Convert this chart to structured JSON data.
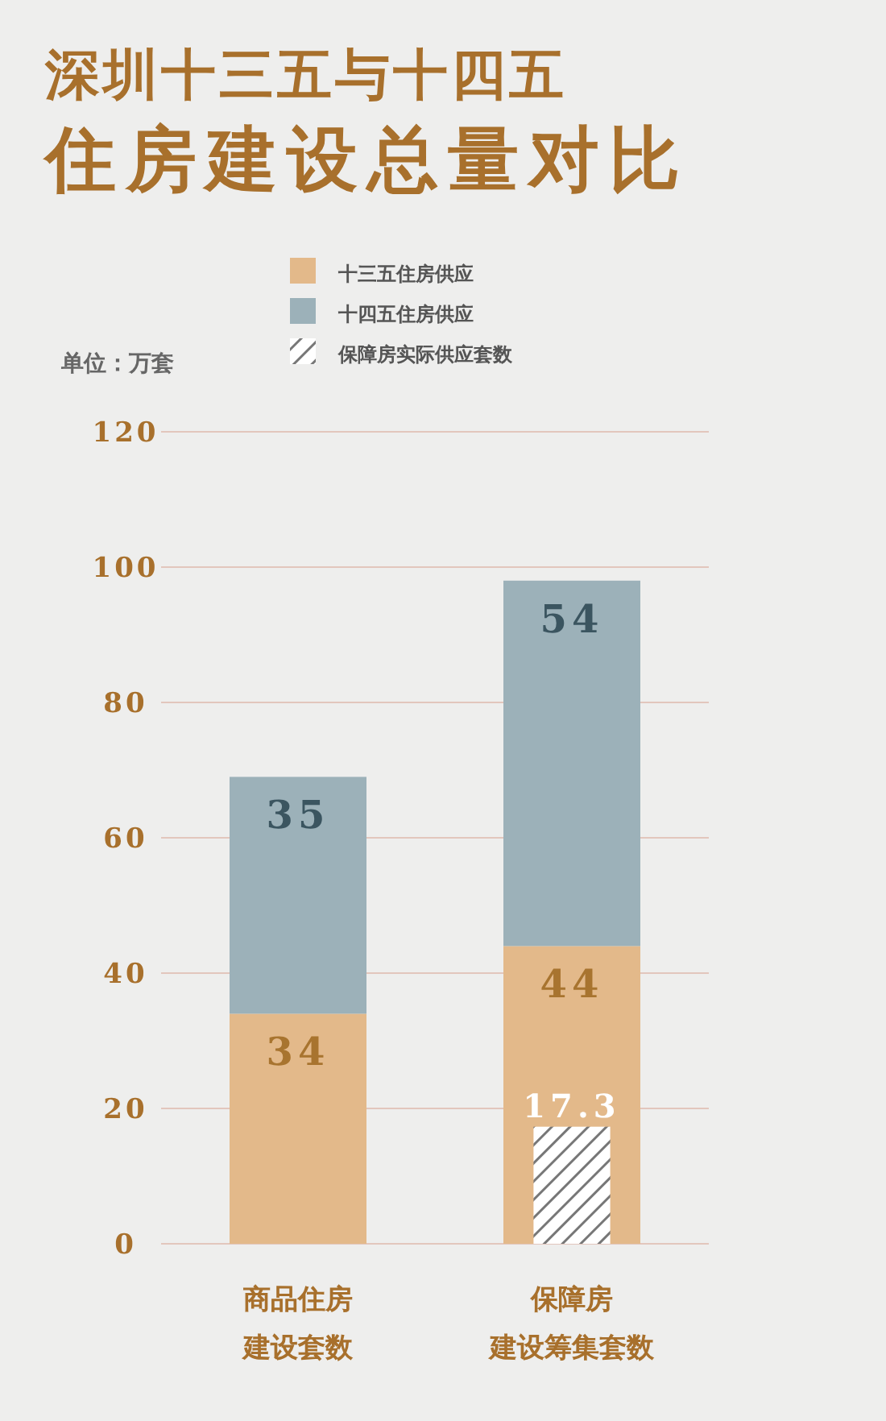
{
  "chart_data": {
    "type": "bar",
    "title": "深圳十三五与十四五",
    "subtitle": "住房建设总量对比",
    "ylabel": "单位：万套",
    "categories": [
      "商品住房建设套数",
      "保障房建设筹集套数"
    ],
    "series": [
      {
        "name": "十三五住房供应",
        "color": "#e3b98a",
        "values": [
          34,
          44
        ],
        "base": [
          0,
          0
        ]
      },
      {
        "name": "十四五住房供应",
        "color": "#9cb1b9",
        "values": [
          35,
          54
        ],
        "base": [
          34,
          44
        ]
      },
      {
        "name": "保障房实际供应套数",
        "type": "bar",
        "color": "#ffffff",
        "values": [
          null,
          17.3
        ],
        "base": [
          null,
          0
        ]
      }
    ],
    "ylim": [
      0,
      120
    ],
    "yticks": [
      0,
      20,
      40,
      60,
      80,
      100,
      120
    ],
    "grid": "y",
    "legend": "top",
    "data_labels": true
  }
}
